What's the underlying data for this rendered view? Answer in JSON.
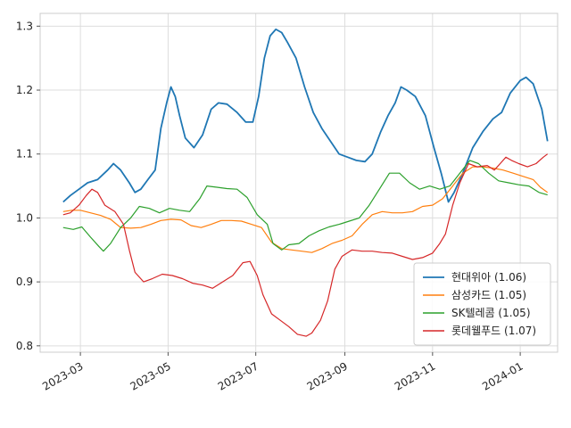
{
  "chart_data": {
    "type": "line",
    "title": "",
    "xlabel": "",
    "ylabel": "",
    "ylim": [
      0.79,
      1.32
    ],
    "xlim": [
      "2023-02-01",
      "2024-01-27"
    ],
    "yticks": [
      0.8,
      0.9,
      1.0,
      1.1,
      1.2,
      1.3
    ],
    "ytick_labels": [
      "0.8",
      "0.9",
      "1.0",
      "1.1",
      "1.2",
      "1.3"
    ],
    "xticks": [
      "2023-03-01",
      "2023-05-01",
      "2023-07-01",
      "2023-09-01",
      "2023-11-01",
      "2024-01-01"
    ],
    "xtick_labels": [
      "2023-03",
      "2023-05",
      "2023-07",
      "2023-09",
      "2023-11",
      "2024-01"
    ],
    "grid": true,
    "legend_position": "lower-right",
    "series": [
      {
        "name": "현대위아 (1.06)",
        "color": "#1f77b4",
        "points": [
          [
            "2023-02-17",
            1.025
          ],
          [
            "2023-02-22",
            1.035
          ],
          [
            "2023-02-28",
            1.045
          ],
          [
            "2023-03-06",
            1.055
          ],
          [
            "2023-03-13",
            1.06
          ],
          [
            "2023-03-20",
            1.075
          ],
          [
            "2023-03-24",
            1.085
          ],
          [
            "2023-03-29",
            1.075
          ],
          [
            "2023-04-04",
            1.055
          ],
          [
            "2023-04-08",
            1.04
          ],
          [
            "2023-04-12",
            1.045
          ],
          [
            "2023-04-17",
            1.06
          ],
          [
            "2023-04-22",
            1.075
          ],
          [
            "2023-04-26",
            1.14
          ],
          [
            "2023-04-30",
            1.18
          ],
          [
            "2023-05-03",
            1.205
          ],
          [
            "2023-05-06",
            1.19
          ],
          [
            "2023-05-09",
            1.16
          ],
          [
            "2023-05-13",
            1.125
          ],
          [
            "2023-05-19",
            1.11
          ],
          [
            "2023-05-25",
            1.13
          ],
          [
            "2023-05-31",
            1.17
          ],
          [
            "2023-06-05",
            1.18
          ],
          [
            "2023-06-11",
            1.178
          ],
          [
            "2023-06-18",
            1.165
          ],
          [
            "2023-06-24",
            1.15
          ],
          [
            "2023-06-29",
            1.15
          ],
          [
            "2023-07-03",
            1.19
          ],
          [
            "2023-07-07",
            1.25
          ],
          [
            "2023-07-11",
            1.285
          ],
          [
            "2023-07-15",
            1.295
          ],
          [
            "2023-07-19",
            1.29
          ],
          [
            "2023-07-23",
            1.275
          ],
          [
            "2023-07-29",
            1.25
          ],
          [
            "2023-08-04",
            1.205
          ],
          [
            "2023-08-10",
            1.165
          ],
          [
            "2023-08-16",
            1.14
          ],
          [
            "2023-08-22",
            1.12
          ],
          [
            "2023-08-28",
            1.1
          ],
          [
            "2023-09-03",
            1.095
          ],
          [
            "2023-09-09",
            1.09
          ],
          [
            "2023-09-15",
            1.088
          ],
          [
            "2023-09-20",
            1.1
          ],
          [
            "2023-09-26",
            1.135
          ],
          [
            "2023-10-01",
            1.16
          ],
          [
            "2023-10-06",
            1.18
          ],
          [
            "2023-10-10",
            1.205
          ],
          [
            "2023-10-14",
            1.2
          ],
          [
            "2023-10-20",
            1.19
          ],
          [
            "2023-10-27",
            1.16
          ],
          [
            "2023-11-02",
            1.11
          ],
          [
            "2023-11-07",
            1.07
          ],
          [
            "2023-11-12",
            1.025
          ],
          [
            "2023-11-16",
            1.04
          ],
          [
            "2023-11-22",
            1.07
          ],
          [
            "2023-11-29",
            1.11
          ],
          [
            "2023-12-06",
            1.135
          ],
          [
            "2023-12-13",
            1.155
          ],
          [
            "2023-12-19",
            1.165
          ],
          [
            "2023-12-25",
            1.195
          ],
          [
            "2024-01-01",
            1.215
          ],
          [
            "2024-01-05",
            1.22
          ],
          [
            "2024-01-10",
            1.21
          ],
          [
            "2024-01-16",
            1.17
          ],
          [
            "2024-01-20",
            1.12
          ]
        ]
      },
      {
        "name": "삼성카드 (1.05)",
        "color": "#ff7f0e",
        "points": [
          [
            "2023-02-17",
            1.01
          ],
          [
            "2023-02-23",
            1.012
          ],
          [
            "2023-03-01",
            1.012
          ],
          [
            "2023-03-08",
            1.008
          ],
          [
            "2023-03-15",
            1.004
          ],
          [
            "2023-03-22",
            0.998
          ],
          [
            "2023-03-29",
            0.985
          ],
          [
            "2023-04-05",
            0.984
          ],
          [
            "2023-04-12",
            0.985
          ],
          [
            "2023-04-19",
            0.99
          ],
          [
            "2023-04-26",
            0.996
          ],
          [
            "2023-05-03",
            0.998
          ],
          [
            "2023-05-10",
            0.997
          ],
          [
            "2023-05-17",
            0.988
          ],
          [
            "2023-05-24",
            0.985
          ],
          [
            "2023-05-31",
            0.99
          ],
          [
            "2023-06-07",
            0.996
          ],
          [
            "2023-06-14",
            0.996
          ],
          [
            "2023-06-21",
            0.995
          ],
          [
            "2023-06-28",
            0.99
          ],
          [
            "2023-07-05",
            0.985
          ],
          [
            "2023-07-12",
            0.962
          ],
          [
            "2023-07-19",
            0.952
          ],
          [
            "2023-07-26",
            0.95
          ],
          [
            "2023-08-02",
            0.948
          ],
          [
            "2023-08-09",
            0.946
          ],
          [
            "2023-08-16",
            0.952
          ],
          [
            "2023-08-23",
            0.96
          ],
          [
            "2023-08-30",
            0.965
          ],
          [
            "2023-09-06",
            0.972
          ],
          [
            "2023-09-13",
            0.99
          ],
          [
            "2023-09-20",
            1.005
          ],
          [
            "2023-09-27",
            1.01
          ],
          [
            "2023-10-04",
            1.008
          ],
          [
            "2023-10-11",
            1.008
          ],
          [
            "2023-10-18",
            1.01
          ],
          [
            "2023-10-25",
            1.018
          ],
          [
            "2023-11-01",
            1.02
          ],
          [
            "2023-11-08",
            1.03
          ],
          [
            "2023-11-15",
            1.05
          ],
          [
            "2023-11-22",
            1.07
          ],
          [
            "2023-11-29",
            1.08
          ],
          [
            "2023-12-06",
            1.08
          ],
          [
            "2023-12-13",
            1.078
          ],
          [
            "2023-12-20",
            1.075
          ],
          [
            "2023-12-27",
            1.07
          ],
          [
            "2024-01-03",
            1.065
          ],
          [
            "2024-01-10",
            1.06
          ],
          [
            "2024-01-15",
            1.048
          ],
          [
            "2024-01-20",
            1.04
          ]
        ]
      },
      {
        "name": "SK텔레콤 (1.05)",
        "color": "#2ca02c",
        "points": [
          [
            "2023-02-17",
            0.985
          ],
          [
            "2023-02-24",
            0.982
          ],
          [
            "2023-03-02",
            0.986
          ],
          [
            "2023-03-08",
            0.97
          ],
          [
            "2023-03-14",
            0.955
          ],
          [
            "2023-03-17",
            0.948
          ],
          [
            "2023-03-22",
            0.96
          ],
          [
            "2023-03-29",
            0.985
          ],
          [
            "2023-04-05",
            1.0
          ],
          [
            "2023-04-11",
            1.018
          ],
          [
            "2023-04-18",
            1.015
          ],
          [
            "2023-04-25",
            1.008
          ],
          [
            "2023-05-02",
            1.015
          ],
          [
            "2023-05-09",
            1.012
          ],
          [
            "2023-05-16",
            1.01
          ],
          [
            "2023-05-23",
            1.03
          ],
          [
            "2023-05-28",
            1.05
          ],
          [
            "2023-06-04",
            1.048
          ],
          [
            "2023-06-11",
            1.046
          ],
          [
            "2023-06-18",
            1.045
          ],
          [
            "2023-06-25",
            1.032
          ],
          [
            "2023-07-02",
            1.005
          ],
          [
            "2023-07-09",
            0.99
          ],
          [
            "2023-07-13",
            0.96
          ],
          [
            "2023-07-19",
            0.95
          ],
          [
            "2023-07-24",
            0.958
          ],
          [
            "2023-07-31",
            0.96
          ],
          [
            "2023-08-07",
            0.972
          ],
          [
            "2023-08-14",
            0.98
          ],
          [
            "2023-08-21",
            0.986
          ],
          [
            "2023-08-28",
            0.99
          ],
          [
            "2023-09-04",
            0.995
          ],
          [
            "2023-09-11",
            1.0
          ],
          [
            "2023-09-18",
            1.02
          ],
          [
            "2023-09-25",
            1.045
          ],
          [
            "2023-10-02",
            1.07
          ],
          [
            "2023-10-09",
            1.07
          ],
          [
            "2023-10-16",
            1.055
          ],
          [
            "2023-10-23",
            1.045
          ],
          [
            "2023-10-30",
            1.05
          ],
          [
            "2023-11-06",
            1.045
          ],
          [
            "2023-11-13",
            1.05
          ],
          [
            "2023-11-20",
            1.07
          ],
          [
            "2023-11-27",
            1.09
          ],
          [
            "2023-12-03",
            1.085
          ],
          [
            "2023-12-10",
            1.07
          ],
          [
            "2023-12-17",
            1.058
          ],
          [
            "2023-12-24",
            1.055
          ],
          [
            "2023-12-31",
            1.052
          ],
          [
            "2024-01-07",
            1.05
          ],
          [
            "2024-01-14",
            1.04
          ],
          [
            "2024-01-20",
            1.036
          ]
        ]
      },
      {
        "name": "롯데웰푸드 (1.07)",
        "color": "#d62728",
        "points": [
          [
            "2023-02-17",
            1.005
          ],
          [
            "2023-02-22",
            1.008
          ],
          [
            "2023-02-28",
            1.02
          ],
          [
            "2023-03-05",
            1.035
          ],
          [
            "2023-03-09",
            1.045
          ],
          [
            "2023-03-13",
            1.04
          ],
          [
            "2023-03-18",
            1.02
          ],
          [
            "2023-03-25",
            1.01
          ],
          [
            "2023-03-31",
            0.99
          ],
          [
            "2023-04-04",
            0.95
          ],
          [
            "2023-04-08",
            0.915
          ],
          [
            "2023-04-14",
            0.9
          ],
          [
            "2023-04-20",
            0.905
          ],
          [
            "2023-04-27",
            0.912
          ],
          [
            "2023-05-04",
            0.91
          ],
          [
            "2023-05-11",
            0.905
          ],
          [
            "2023-05-18",
            0.898
          ],
          [
            "2023-05-25",
            0.895
          ],
          [
            "2023-06-01",
            0.89
          ],
          [
            "2023-06-08",
            0.9
          ],
          [
            "2023-06-15",
            0.91
          ],
          [
            "2023-06-22",
            0.93
          ],
          [
            "2023-06-27",
            0.932
          ],
          [
            "2023-07-02",
            0.91
          ],
          [
            "2023-07-06",
            0.88
          ],
          [
            "2023-07-12",
            0.85
          ],
          [
            "2023-07-18",
            0.84
          ],
          [
            "2023-07-24",
            0.83
          ],
          [
            "2023-07-30",
            0.818
          ],
          [
            "2023-08-05",
            0.815
          ],
          [
            "2023-08-09",
            0.82
          ],
          [
            "2023-08-15",
            0.84
          ],
          [
            "2023-08-20",
            0.87
          ],
          [
            "2023-08-25",
            0.92
          ],
          [
            "2023-08-30",
            0.94
          ],
          [
            "2023-09-06",
            0.95
          ],
          [
            "2023-09-13",
            0.948
          ],
          [
            "2023-09-20",
            0.948
          ],
          [
            "2023-09-27",
            0.946
          ],
          [
            "2023-10-04",
            0.945
          ],
          [
            "2023-10-11",
            0.94
          ],
          [
            "2023-10-18",
            0.935
          ],
          [
            "2023-10-25",
            0.938
          ],
          [
            "2023-11-01",
            0.945
          ],
          [
            "2023-11-06",
            0.96
          ],
          [
            "2023-11-10",
            0.975
          ],
          [
            "2023-11-15",
            1.02
          ],
          [
            "2023-11-20",
            1.055
          ],
          [
            "2023-11-26",
            1.085
          ],
          [
            "2023-12-02",
            1.08
          ],
          [
            "2023-12-09",
            1.082
          ],
          [
            "2023-12-14",
            1.075
          ],
          [
            "2023-12-18",
            1.085
          ],
          [
            "2023-12-22",
            1.095
          ],
          [
            "2023-12-26",
            1.09
          ],
          [
            "2023-12-31",
            1.085
          ],
          [
            "2024-01-06",
            1.08
          ],
          [
            "2024-01-12",
            1.085
          ],
          [
            "2024-01-17",
            1.095
          ],
          [
            "2024-01-20",
            1.1
          ]
        ]
      }
    ]
  }
}
